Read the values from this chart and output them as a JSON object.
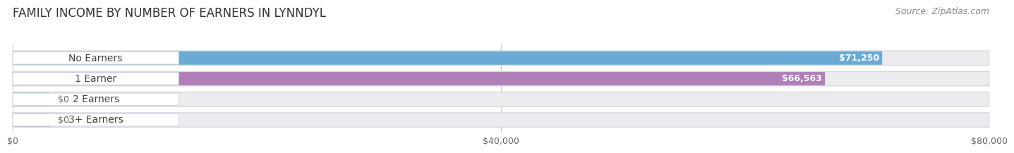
{
  "title": "FAMILY INCOME BY NUMBER OF EARNERS IN LYNNDYL",
  "source": "Source: ZipAtlas.com",
  "categories": [
    "No Earners",
    "1 Earner",
    "2 Earners",
    "3+ Earners"
  ],
  "values": [
    71250,
    66563,
    0,
    0
  ],
  "bar_colors": [
    "#6aaad4",
    "#b07fba",
    "#4dbdad",
    "#9999d4"
  ],
  "value_labels": [
    "$71,250",
    "$66,563",
    "$0",
    "$0"
  ],
  "xlim": [
    0,
    80000
  ],
  "xticks": [
    0,
    40000,
    80000
  ],
  "xticklabels": [
    "$0",
    "$40,000",
    "$80,000"
  ],
  "fig_bg_color": "#ffffff",
  "bar_row_bg": "#ebebf0",
  "bar_row_outline": "#d8d8e0",
  "white_label_bg": "#ffffff",
  "title_fontsize": 12,
  "source_fontsize": 9,
  "label_fontsize": 10,
  "value_fontsize": 9,
  "tick_fontsize": 9
}
